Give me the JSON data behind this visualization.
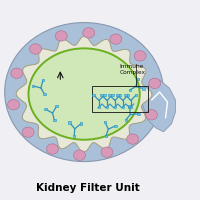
{
  "title": "Kidney Filter Unit",
  "title_fontsize": 7.5,
  "fig_bg": "#f0f0f4",
  "outer_blob_color": "#aabfd8",
  "outer_blob_edge": "#8899b0",
  "bumpy_fill": "#e8e8d8",
  "bumpy_edge": "#a0a080",
  "pink_color": "#d899b8",
  "pink_edge": "#b07898",
  "inner_fill": "#d0e8b8",
  "inner_edge": "#6ab020",
  "ab_color": "#60c8e8",
  "ab_edge": "#3090c0",
  "arrow_color": "#111111",
  "label_color": "#111111",
  "box_edge": "#111111",
  "right_tail_color": "#b8ccdc"
}
